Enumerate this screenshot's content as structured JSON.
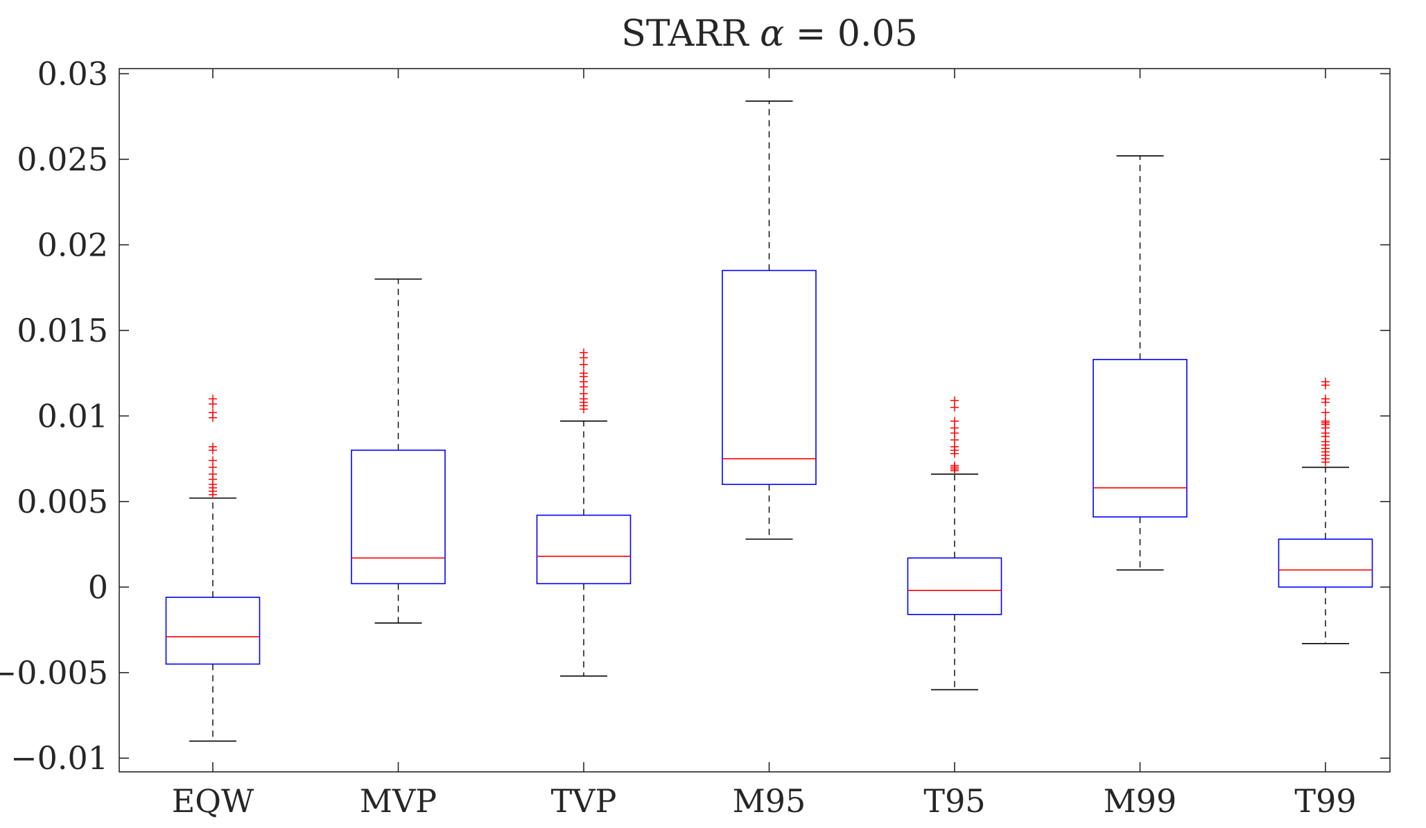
{
  "chart_data": {
    "type": "box",
    "title_main": "STARR ",
    "title_symbol": "α",
    "title_rest": " = 0.05",
    "xlabel": "",
    "ylabel": "",
    "ylim": [
      -0.0108,
      0.0303
    ],
    "yticks": [
      -0.01,
      -0.005,
      0,
      0.005,
      0.01,
      0.015,
      0.02,
      0.025,
      0.03
    ],
    "ytick_labels": [
      "−0.01",
      "−0.005",
      "0",
      "0.005",
      "0.01",
      "0.015",
      "0.02",
      "0.025",
      "0.03"
    ],
    "categories": [
      "EQW",
      "MVP",
      "TVP",
      "M95",
      "T95",
      "M99",
      "T99"
    ],
    "colors": {
      "box": "#0000ff",
      "median": "#ff0000",
      "whisker": "#000000",
      "outlier": "#ff0000",
      "axis": "#262626"
    },
    "boxes": [
      {
        "name": "EQW",
        "whisker_low": -0.009,
        "q1": -0.0045,
        "median": -0.0029,
        "q3": -0.0006,
        "whisker_high": 0.0052,
        "outliers": [
          0.0054,
          0.0056,
          0.0058,
          0.006,
          0.0063,
          0.0066,
          0.007,
          0.0074,
          0.008,
          0.0082,
          0.0099,
          0.0102,
          0.0107,
          0.011
        ]
      },
      {
        "name": "MVP",
        "whisker_low": -0.0021,
        "q1": 0.0002,
        "median": 0.0017,
        "q3": 0.008,
        "whisker_high": 0.018,
        "outliers": []
      },
      {
        "name": "TVP",
        "whisker_low": -0.0052,
        "q1": 0.0002,
        "median": 0.0018,
        "q3": 0.0042,
        "whisker_high": 0.0097,
        "outliers": [
          0.0104,
          0.0106,
          0.0108,
          0.011,
          0.0113,
          0.0117,
          0.012,
          0.0123,
          0.0125,
          0.013,
          0.0134,
          0.0137
        ]
      },
      {
        "name": "M95",
        "whisker_low": 0.0028,
        "q1": 0.006,
        "median": 0.0075,
        "q3": 0.0185,
        "whisker_high": 0.0284,
        "outliers": []
      },
      {
        "name": "T95",
        "whisker_low": -0.006,
        "q1": -0.0016,
        "median": -0.0002,
        "q3": 0.0017,
        "whisker_high": 0.0066,
        "outliers": [
          0.0068,
          0.0069,
          0.007,
          0.0071,
          0.0078,
          0.008,
          0.0082,
          0.0086,
          0.009,
          0.0093,
          0.0097,
          0.0105,
          0.0109
        ]
      },
      {
        "name": "M99",
        "whisker_low": 0.001,
        "q1": 0.0041,
        "median": 0.0058,
        "q3": 0.0133,
        "whisker_high": 0.0252,
        "outliers": []
      },
      {
        "name": "T99",
        "whisker_low": -0.0033,
        "q1": 0.0,
        "median": 0.001,
        "q3": 0.0028,
        "whisker_high": 0.007,
        "outliers": [
          0.0073,
          0.0075,
          0.0077,
          0.0079,
          0.0081,
          0.0083,
          0.0085,
          0.0088,
          0.009,
          0.0093,
          0.0095,
          0.0096,
          0.0097,
          0.0102,
          0.0108,
          0.011,
          0.0118,
          0.012
        ]
      }
    ]
  }
}
